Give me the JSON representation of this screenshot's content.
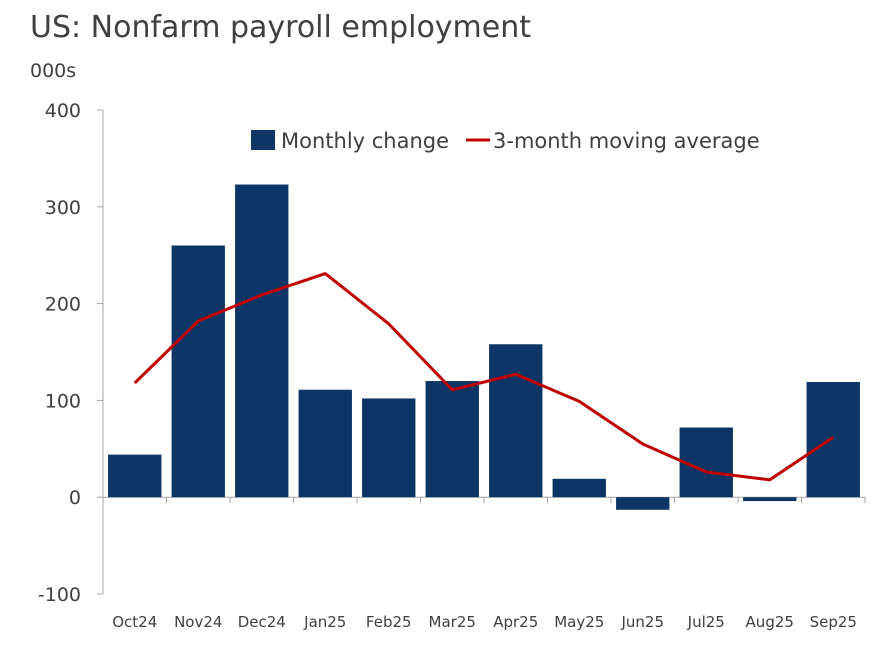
{
  "title": "US: Nonfarm payroll employment",
  "unit": "000s",
  "chart_data": {
    "type": "bar",
    "title": "US: Nonfarm payroll employment",
    "ylabel": "000s",
    "xlabel": "",
    "ylim": [
      -100,
      400
    ],
    "yticks": [
      400,
      300,
      200,
      100,
      0,
      -100
    ],
    "categories": [
      "Oct24",
      "Nov24",
      "Dec24",
      "Jan25",
      "Feb25",
      "Mar25",
      "Apr25",
      "May25",
      "Jun25",
      "Jul25",
      "Aug25",
      "Sep25"
    ],
    "series": [
      {
        "name": "Monthly change",
        "type": "bar",
        "color": "#0d3565",
        "values": [
          44,
          260,
          323,
          111,
          102,
          120,
          158,
          19,
          -13,
          72,
          -4,
          119
        ]
      },
      {
        "name": "3-month moving average",
        "type": "line",
        "color": "#c00000",
        "values": [
          118,
          182,
          209,
          231,
          179,
          111,
          127,
          99,
          55,
          26,
          18,
          62
        ]
      }
    ],
    "legend": [
      "Monthly change",
      "3-month moving average"
    ],
    "legend_position": "top"
  }
}
